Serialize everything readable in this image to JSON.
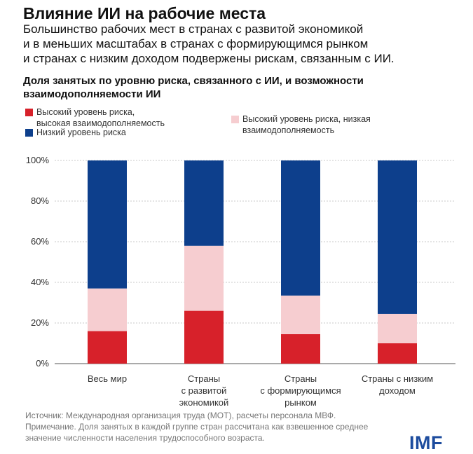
{
  "header": {
    "title": "Влияние ИИ на рабочие места",
    "subtitle_lines": [
      "Большинство рабочих мест в странах с развитой экономикой",
      "и в меньших масштабах в странах с формирующимся рынком",
      "и странах с низким доходом подвержены рискам, связанным с ИИ."
    ]
  },
  "chart_heading_lines": [
    "Доля занятых по уровню риска, связанного с ИИ, и возможности",
    "взаимодополняемости ИИ"
  ],
  "legend": [
    {
      "label_lines": [
        "Высокий уровень риска,",
        "высокая взаимодополняемость"
      ],
      "color": "#d7212a"
    },
    {
      "label_lines": [
        "Низкий уровень риска"
      ],
      "color": "#0d3f8c"
    },
    {
      "label_lines": [
        "Высокий уровень риска, низкая",
        "взаимодополняемость"
      ],
      "color": "#f6cdd0"
    }
  ],
  "chart_data": {
    "type": "bar",
    "stacked": true,
    "categories": [
      [
        "Весь мир"
      ],
      [
        "Страны",
        "с развитой",
        "экономикой"
      ],
      [
        "Страны",
        "с формирующимся",
        "рынком"
      ],
      [
        "Страны с низким",
        "доходом"
      ]
    ],
    "series": [
      {
        "name": "Высокий уровень риска, высокая взаимодополняемость",
        "color": "#d7212a",
        "values": [
          16,
          26,
          14.5,
          10
        ]
      },
      {
        "name": "Высокий уровень риска, низкая взаимодополняемость",
        "color": "#f6cdd0",
        "values": [
          21,
          32,
          19,
          14.5
        ]
      },
      {
        "name": "Низкий уровень риска",
        "color": "#0d3f8c",
        "values": [
          63,
          42,
          66.5,
          75.5
        ]
      }
    ],
    "ylim": [
      0,
      100
    ],
    "yticks": [
      "0%",
      "20%",
      "40%",
      "60%",
      "80%",
      "100%"
    ],
    "grid": true
  },
  "footer": {
    "note_lines": [
      "Источник: Международная организация труда (МОТ), расчеты персонала МВФ.",
      "Примечание. Доля занятых в каждой группе стран рассчитана как взвешенное среднее",
      "значение численности населения трудоспособного возраста."
    ],
    "logo": "IMF"
  }
}
